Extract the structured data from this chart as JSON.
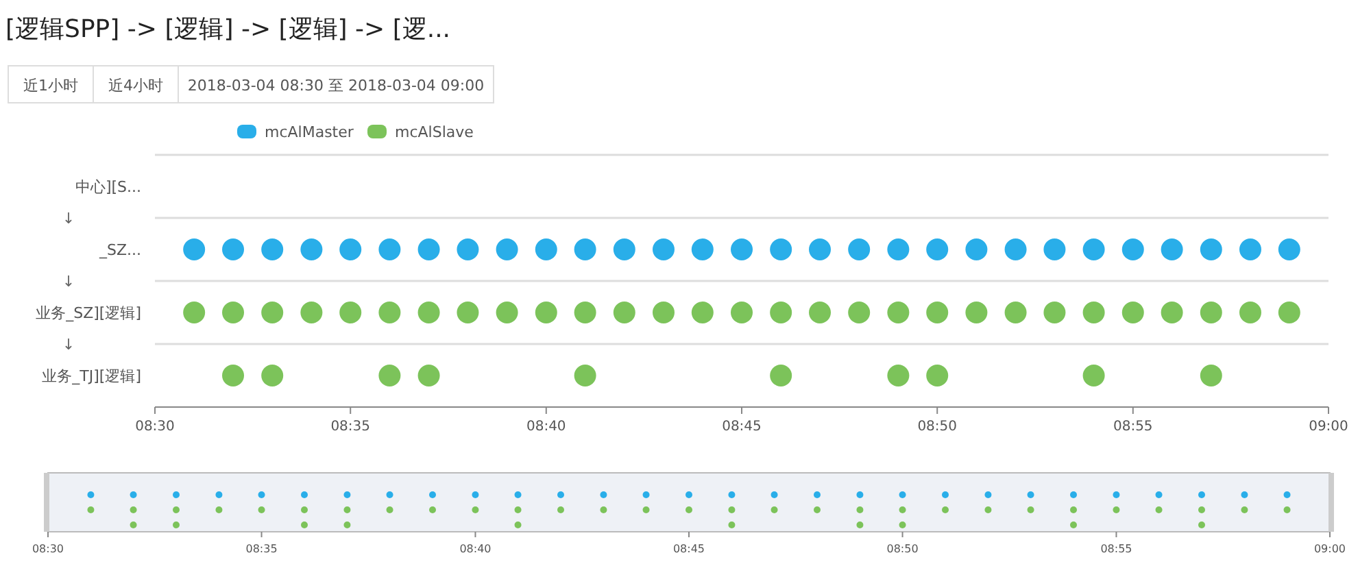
{
  "chart_data": {
    "type": "scatter",
    "title": "[逻辑SPP] -> [逻辑] -> [逻辑] -> [逻...",
    "annotations": [
      "近1小时",
      "近4小时",
      "2018-03-04 08:30 至 2018-03-04 09:00",
      "↓",
      "↓",
      "↓"
    ],
    "orientation": "horizontal",
    "categories": [
      "中心][S...",
      "_SZ...",
      "业务_SZ][逻辑]",
      "业务_TJ][逻辑]"
    ],
    "series": [
      {
        "name": "mcAlMaster",
        "color": "#29aee9",
        "values": [
          null,
          8.5167,
          null,
          null
        ]
      },
      {
        "color": "#29aee9",
        "values": [
          null,
          8.5333,
          null,
          null
        ]
      },
      {
        "color": "#29aee9",
        "values": [
          null,
          8.55,
          null,
          null
        ]
      },
      {
        "color": "#29aee9",
        "values": [
          null,
          8.5667,
          null,
          null
        ]
      },
      {
        "color": "#29aee9",
        "values": [
          null,
          8.5833,
          null,
          null
        ]
      },
      {
        "color": "#29aee9",
        "values": [
          null,
          8.6,
          null,
          null
        ]
      },
      {
        "color": "#29aee9",
        "values": [
          null,
          8.6167,
          null,
          null
        ]
      },
      {
        "color": "#29aee9",
        "values": [
          null,
          8.6333,
          null,
          null
        ]
      },
      {
        "color": "#29aee9",
        "values": [
          null,
          8.65,
          null,
          null
        ]
      },
      {
        "color": "#29aee9",
        "values": [
          null,
          8.6667,
          null,
          null
        ]
      },
      {
        "color": "#29aee9",
        "values": [
          null,
          8.6833,
          null,
          null
        ]
      },
      {
        "color": "#29aee9",
        "values": [
          null,
          8.7,
          null,
          null
        ]
      },
      {
        "color": "#29aee9",
        "values": [
          null,
          8.7167,
          null,
          null
        ]
      },
      {
        "color": "#29aee9",
        "values": [
          null,
          8.7333,
          null,
          null
        ]
      },
      {
        "color": "#29aee9",
        "values": [
          null,
          8.75,
          null,
          null
        ]
      },
      {
        "color": "#29aee9",
        "values": [
          null,
          8.7667,
          null,
          null
        ]
      },
      {
        "color": "#29aee9",
        "values": [
          null,
          8.7833,
          null,
          null
        ]
      },
      {
        "color": "#29aee9",
        "values": [
          null,
          8.8,
          null,
          null
        ]
      },
      {
        "color": "#29aee9",
        "values": [
          null,
          8.8167,
          null,
          null
        ]
      },
      {
        "color": "#29aee9",
        "values": [
          null,
          8.8333,
          null,
          null
        ]
      },
      {
        "color": "#29aee9",
        "values": [
          null,
          8.85,
          null,
          null
        ]
      },
      {
        "color": "#29aee9",
        "values": [
          null,
          8.8667,
          null,
          null
        ]
      },
      {
        "color": "#29aee9",
        "values": [
          null,
          8.8833,
          null,
          null
        ]
      },
      {
        "color": "#29aee9",
        "values": [
          null,
          8.9,
          null,
          null
        ]
      },
      {
        "color": "#29aee9",
        "values": [
          null,
          8.9167,
          null,
          null
        ]
      },
      {
        "color": "#29aee9",
        "values": [
          null,
          8.9333,
          null,
          null
        ]
      },
      {
        "color": "#29aee9",
        "values": [
          null,
          8.95,
          null,
          null
        ]
      },
      {
        "color": "#29aee9",
        "values": [
          null,
          8.9667,
          null,
          null
        ]
      },
      {
        "color": "#29aee9",
        "values": [
          null,
          8.9833,
          null,
          null
        ]
      },
      {
        "name": "mcAlSlave",
        "color": "#7cc35a",
        "values": [
          null,
          null,
          8.5167,
          null
        ]
      },
      {
        "color": "#7cc35a",
        "values": [
          null,
          null,
          8.5333,
          8.5333
        ]
      },
      {
        "color": "#7cc35a",
        "values": [
          null,
          null,
          8.55,
          8.55
        ]
      },
      {
        "color": "#7cc35a",
        "values": [
          null,
          null,
          8.5667,
          null
        ]
      },
      {
        "color": "#7cc35a",
        "values": [
          null,
          null,
          8.5833,
          null
        ]
      },
      {
        "color": "#7cc35a",
        "values": [
          null,
          null,
          8.6,
          8.6
        ]
      },
      {
        "color": "#7cc35a",
        "values": [
          null,
          null,
          8.6167,
          8.6167
        ]
      },
      {
        "color": "#7cc35a",
        "values": [
          null,
          null,
          8.6333,
          null
        ]
      },
      {
        "color": "#7cc35a",
        "values": [
          null,
          null,
          8.65,
          null
        ]
      },
      {
        "color": "#7cc35a",
        "values": [
          null,
          null,
          8.6667,
          null
        ]
      },
      {
        "color": "#7cc35a",
        "values": [
          null,
          null,
          8.6833,
          8.6833
        ]
      },
      {
        "color": "#7cc35a",
        "values": [
          null,
          null,
          8.7,
          null
        ]
      },
      {
        "color": "#7cc35a",
        "values": [
          null,
          null,
          8.7167,
          null
        ]
      },
      {
        "color": "#7cc35a",
        "values": [
          null,
          null,
          8.7333,
          null
        ]
      },
      {
        "color": "#7cc35a",
        "values": [
          null,
          null,
          8.75,
          null
        ]
      },
      {
        "color": "#7cc35a",
        "values": [
          null,
          null,
          8.7667,
          8.7667
        ]
      },
      {
        "color": "#7cc35a",
        "values": [
          null,
          null,
          8.7833,
          null
        ]
      },
      {
        "color": "#7cc35a",
        "values": [
          null,
          null,
          8.8,
          null
        ]
      },
      {
        "color": "#7cc35a",
        "values": [
          null,
          null,
          8.8167,
          8.8167
        ]
      },
      {
        "color": "#7cc35a",
        "values": [
          null,
          null,
          8.8333,
          8.8333
        ]
      },
      {
        "color": "#7cc35a",
        "values": [
          null,
          null,
          8.85,
          null
        ]
      },
      {
        "color": "#7cc35a",
        "values": [
          null,
          null,
          8.8667,
          null
        ]
      },
      {
        "color": "#7cc35a",
        "values": [
          null,
          null,
          8.8833,
          null
        ]
      },
      {
        "color": "#7cc35a",
        "values": [
          null,
          null,
          8.9,
          8.9
        ]
      },
      {
        "color": "#7cc35a",
        "values": [
          null,
          null,
          8.9167,
          null
        ]
      },
      {
        "color": "#7cc35a",
        "values": [
          null,
          null,
          8.9333,
          null
        ]
      },
      {
        "color": "#7cc35a",
        "values": [
          null,
          null,
          8.95,
          8.95
        ]
      },
      {
        "color": "#7cc35a",
        "values": [
          null,
          null,
          8.9667,
          null
        ]
      },
      {
        "color": "#7cc35a",
        "values": [
          null,
          null,
          8.9833,
          null
        ]
      }
    ],
    "xlim": [
      8.5,
      9.0
    ],
    "xticks": [
      {
        "value": 8.5,
        "label": "08:30"
      },
      {
        "value": 8.5833,
        "label": "08:35"
      },
      {
        "value": 8.6667,
        "label": "08:40"
      },
      {
        "value": 8.75,
        "label": "08:45"
      },
      {
        "value": 8.8333,
        "label": "08:50"
      },
      {
        "value": 8.9167,
        "label": "08:55"
      },
      {
        "value": 9.0,
        "label": "09:00"
      }
    ],
    "grid": "y",
    "legend": "top",
    "marker": "circle"
  }
}
